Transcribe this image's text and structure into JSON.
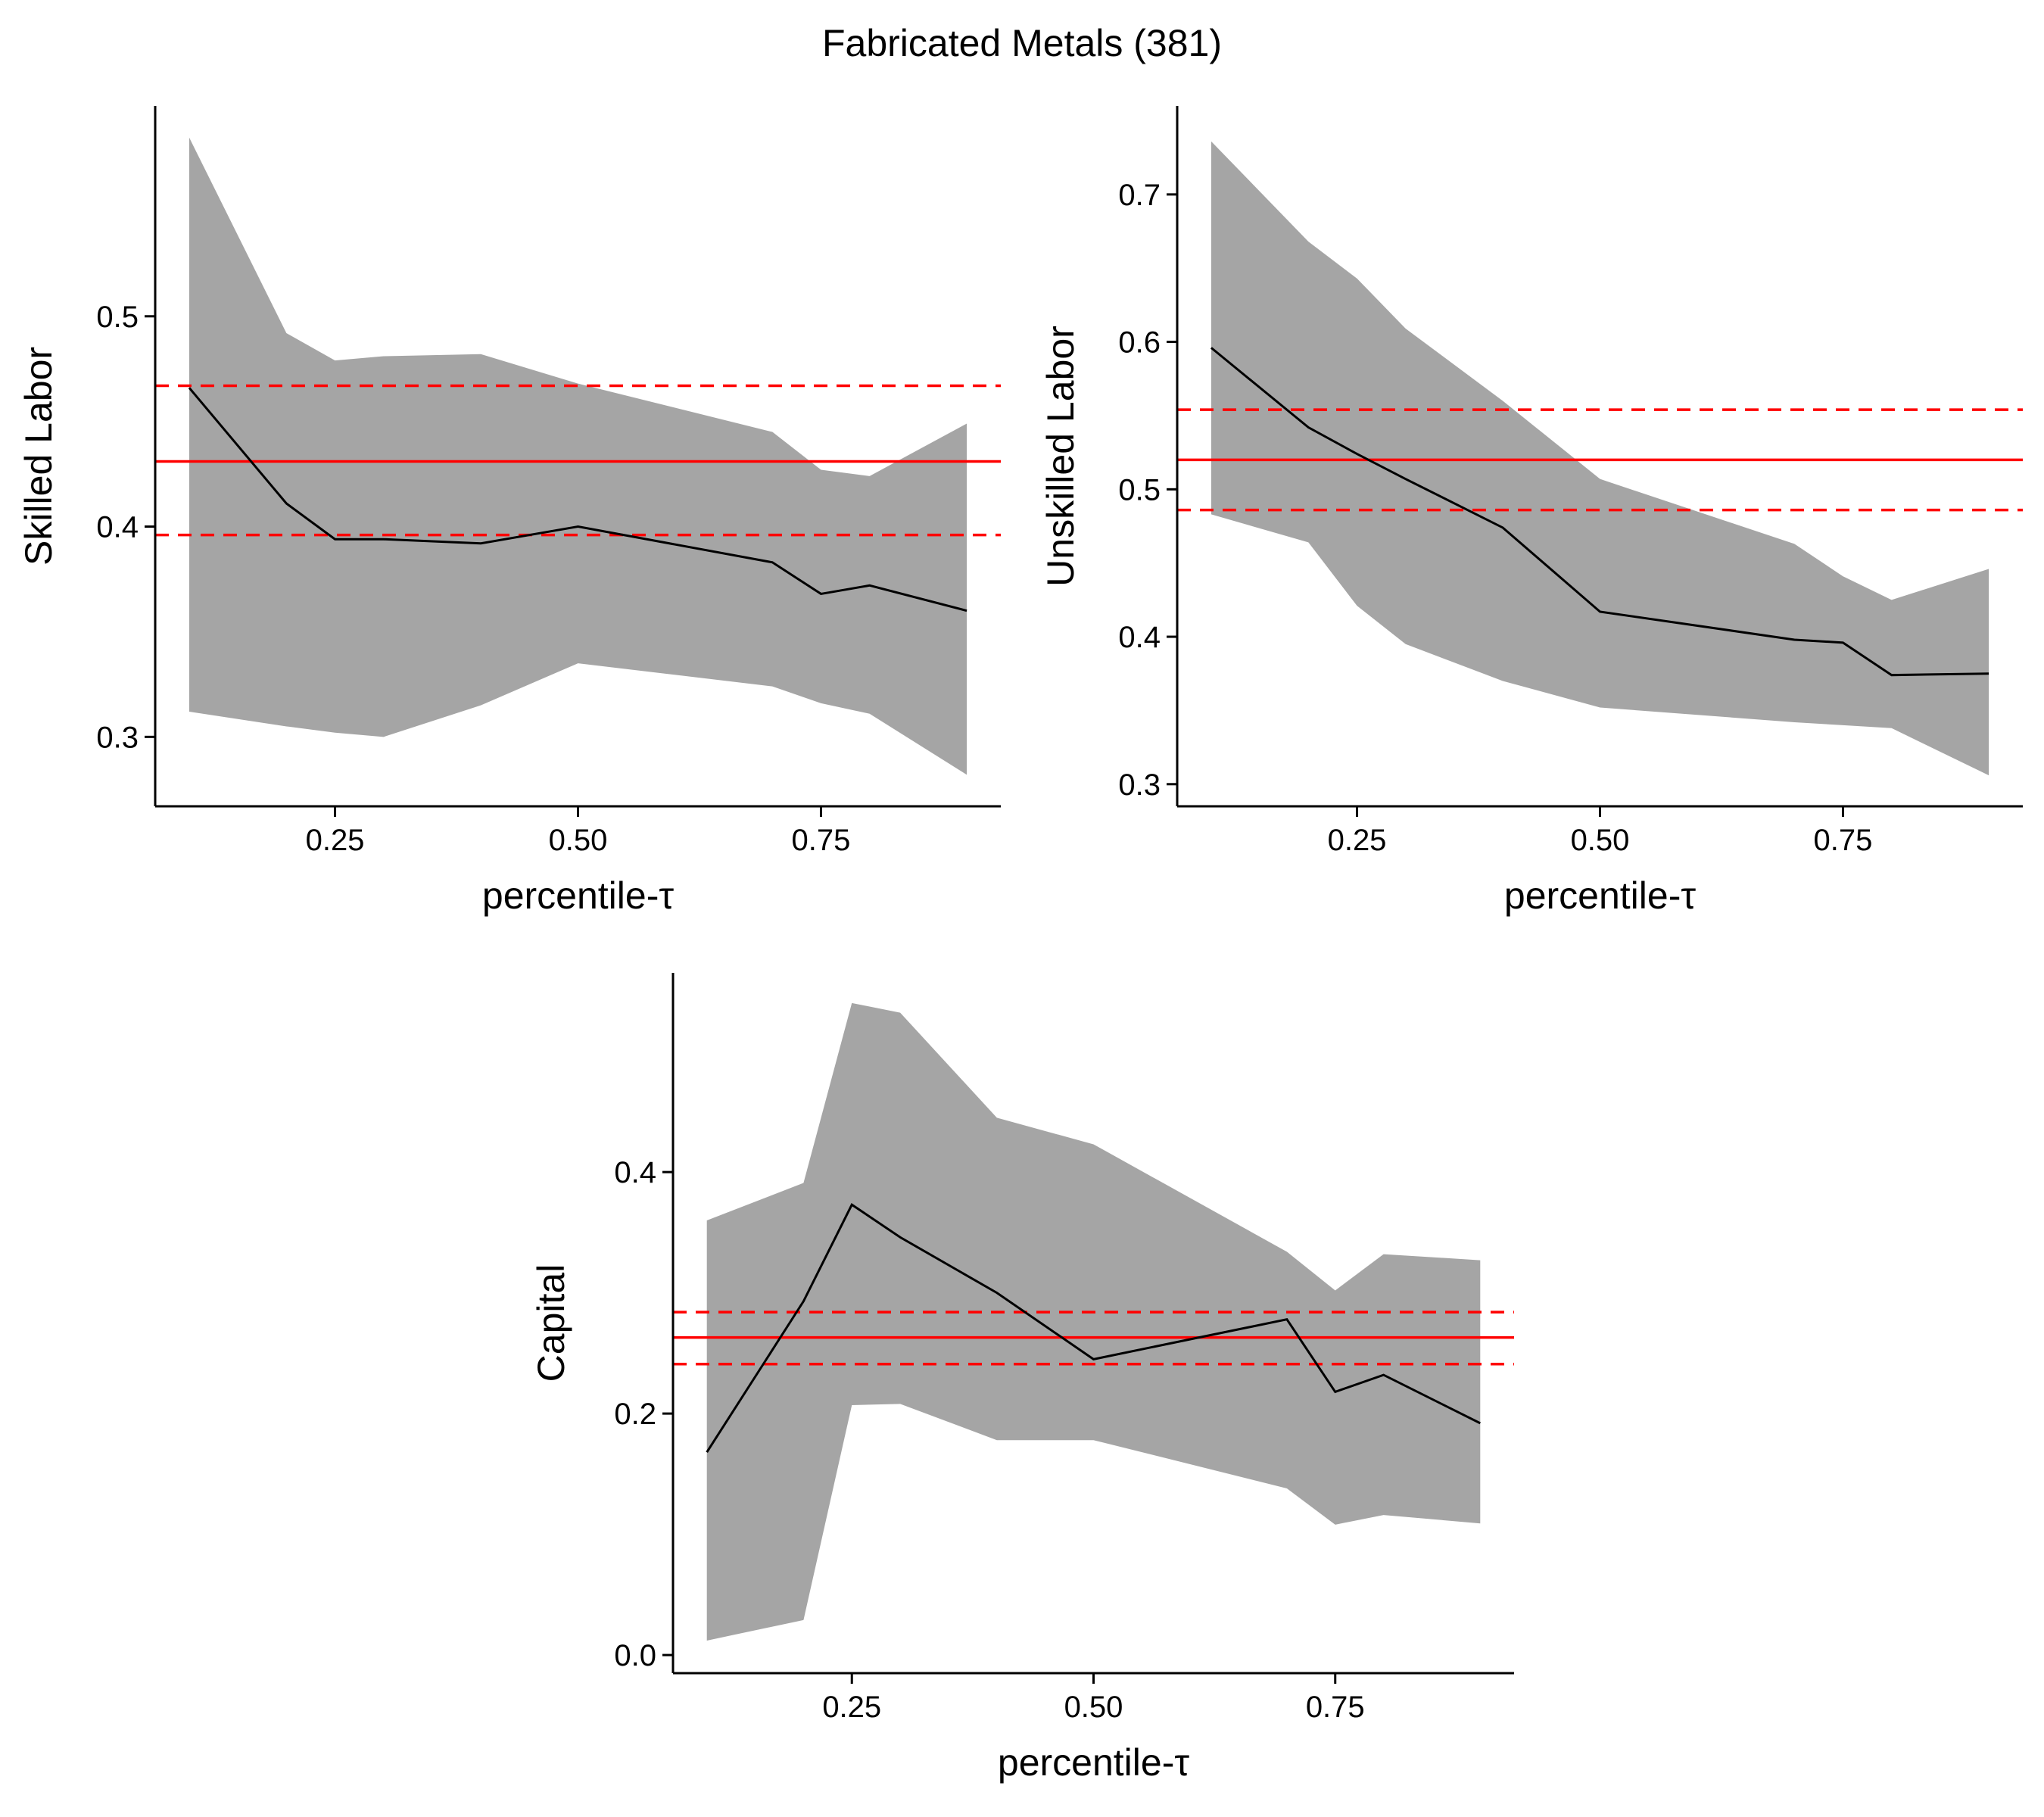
{
  "figure": {
    "title": "Fabricated Metals (381)"
  },
  "chart_data": [
    {
      "type": "line",
      "xlabel": "percentile-τ",
      "ylabel": "Skilled Labor",
      "xlim": [
        0.065,
        0.935
      ],
      "ylim": [
        0.267,
        0.6
      ],
      "xticks": [
        0.25,
        0.5,
        0.75
      ],
      "xtick_labels": [
        "0.25",
        "0.50",
        "0.75"
      ],
      "yticks": [
        0.3,
        0.4,
        0.5
      ],
      "ytick_labels": [
        "0.3",
        "0.4",
        "0.5"
      ],
      "grid": false,
      "x": [
        0.1,
        0.2,
        0.25,
        0.3,
        0.4,
        0.5,
        0.7,
        0.75,
        0.8,
        0.9
      ],
      "estimate": [
        0.466,
        0.411,
        0.394,
        0.394,
        0.392,
        0.4,
        0.383,
        0.368,
        0.372,
        0.36
      ],
      "lower": [
        0.312,
        0.305,
        0.302,
        0.3,
        0.315,
        0.335,
        0.324,
        0.316,
        0.311,
        0.282
      ],
      "upper": [
        0.585,
        0.492,
        0.479,
        0.481,
        0.482,
        0.468,
        0.445,
        0.427,
        0.424,
        0.449
      ],
      "ols": {
        "estimate": 0.431,
        "lower": 0.396,
        "upper": 0.467
      },
      "colors": {
        "band": "#a5a5a5",
        "estimate": "#000000",
        "ols": "#ff0000"
      }
    },
    {
      "type": "line",
      "xlabel": "percentile-τ",
      "ylabel": "Unskilled Labor",
      "xlim": [
        0.065,
        0.935
      ],
      "ylim": [
        0.285,
        0.76
      ],
      "xticks": [
        0.25,
        0.5,
        0.75
      ],
      "xtick_labels": [
        "0.25",
        "0.50",
        "0.75"
      ],
      "yticks": [
        0.3,
        0.4,
        0.5,
        0.6,
        0.7
      ],
      "ytick_labels": [
        "0.3",
        "0.4",
        "0.5",
        "0.6",
        "0.7"
      ],
      "grid": false,
      "x": [
        0.1,
        0.2,
        0.25,
        0.3,
        0.4,
        0.5,
        0.7,
        0.75,
        0.8,
        0.9
      ],
      "estimate": [
        0.596,
        0.542,
        0.524,
        0.507,
        0.474,
        0.417,
        0.398,
        0.396,
        0.374,
        0.375
      ],
      "lower": [
        0.483,
        0.464,
        0.421,
        0.395,
        0.37,
        0.352,
        0.342,
        0.34,
        0.338,
        0.306
      ],
      "upper": [
        0.736,
        0.668,
        0.643,
        0.609,
        0.56,
        0.507,
        0.463,
        0.441,
        0.425,
        0.446
      ],
      "ols": {
        "estimate": 0.52,
        "lower": 0.486,
        "upper": 0.554
      },
      "colors": {
        "band": "#a5a5a5",
        "estimate": "#000000",
        "ols": "#ff0000"
      }
    },
    {
      "type": "line",
      "xlabel": "percentile-τ",
      "ylabel": "Capital",
      "xlim": [
        0.065,
        0.935
      ],
      "ylim": [
        -0.015,
        0.565
      ],
      "xticks": [
        0.25,
        0.5,
        0.75
      ],
      "xtick_labels": [
        "0.25",
        "0.50",
        "0.75"
      ],
      "yticks": [
        0.0,
        0.2,
        0.4
      ],
      "ytick_labels": [
        "0.0",
        "0.2",
        "0.4"
      ],
      "grid": false,
      "x": [
        0.1,
        0.2,
        0.25,
        0.3,
        0.4,
        0.5,
        0.7,
        0.75,
        0.8,
        0.9
      ],
      "estimate": [
        0.168,
        0.293,
        0.373,
        0.346,
        0.3,
        0.245,
        0.278,
        0.218,
        0.232,
        0.192
      ],
      "lower": [
        0.012,
        0.029,
        0.207,
        0.208,
        0.178,
        0.178,
        0.138,
        0.108,
        0.116,
        0.109
      ],
      "upper": [
        0.36,
        0.391,
        0.54,
        0.532,
        0.445,
        0.423,
        0.334,
        0.302,
        0.332,
        0.327
      ],
      "ols": {
        "estimate": 0.263,
        "lower": 0.241,
        "upper": 0.284
      },
      "colors": {
        "band": "#a5a5a5",
        "estimate": "#000000",
        "ols": "#ff0000"
      }
    }
  ]
}
